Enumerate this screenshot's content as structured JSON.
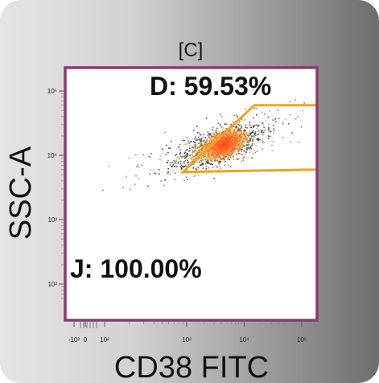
{
  "chart_data": {
    "type": "scatter",
    "title": "[C]",
    "xlabel": "CD38 FITC",
    "ylabel": "SSC-A",
    "x_scale": "biexponential",
    "y_scale": "log",
    "xlim": [
      -200,
      200000
    ],
    "ylim": [
      50,
      200000
    ],
    "x_ticks": [
      {
        "value": -100,
        "label": "-10²"
      },
      {
        "value": 0,
        "label": "0"
      },
      {
        "value": 100,
        "label": "10²"
      },
      {
        "value": 1000,
        "label": "10³"
      },
      {
        "value": 10000,
        "label": "10⁴"
      },
      {
        "value": 100000,
        "label": "10⁵"
      }
    ],
    "y_ticks": [
      {
        "value": 100,
        "label": "10²"
      },
      {
        "value": 1000,
        "label": "10³"
      },
      {
        "value": 10000,
        "label": "10⁴"
      },
      {
        "value": 100000,
        "label": "10⁵"
      }
    ],
    "density_center": {
      "x": 3500,
      "y": 14000
    },
    "gates": [
      {
        "label": "D: 59.53%",
        "color": "#f5a11c",
        "vertices": [
          [
            900,
            5500
          ],
          [
            15000,
            60000
          ],
          [
            200000,
            60000
          ],
          [
            200000,
            6000
          ]
        ]
      },
      {
        "label": "J: 100.00%",
        "color": "#f5a11c"
      }
    ],
    "plot_border_color": "#8b3a6e",
    "grid": false
  }
}
